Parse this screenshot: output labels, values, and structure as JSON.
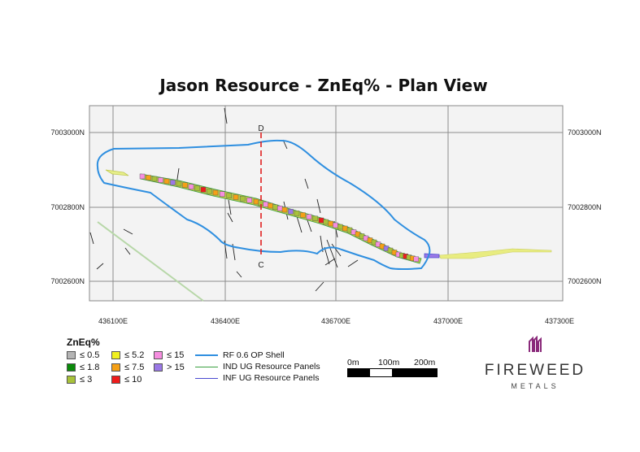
{
  "title": "Jason Resource - ZnEq% - Plan View",
  "axes": {
    "x_ticks": [
      "436100E",
      "436400E",
      "436700E",
      "437000E",
      "437300E"
    ],
    "y_ticks": [
      "7003000N",
      "7002800N",
      "7002600N"
    ]
  },
  "section_labels": {
    "north": "D",
    "south": "C"
  },
  "legend": {
    "title": "ZnEq%",
    "items": [
      {
        "label": "≤ 0.5",
        "color": "#b4b4b4"
      },
      {
        "label": "≤ 1.8",
        "color": "#0a8a0a"
      },
      {
        "label": "≤ 3",
        "color": "#a8c23a"
      },
      {
        "label": "≤ 5.2",
        "color": "#f0f020"
      },
      {
        "label": "≤ 7.5",
        "color": "#f5a016"
      },
      {
        "label": "≤ 10",
        "color": "#ee1c1c"
      },
      {
        "label": "≤ 15",
        "color": "#f68ee0"
      },
      {
        "label": "> 15",
        "color": "#9a78e6"
      }
    ]
  },
  "lines_legend": [
    {
      "label": "RF 0.6 OP Shell",
      "color": "#2f8fe0"
    },
    {
      "label": "IND UG Resource Panels",
      "color": "#3aa040"
    },
    {
      "label": "INF UG Resource Panels",
      "color": "#4a4ad0"
    }
  ],
  "scale_bar": {
    "labels": [
      "0m",
      "100m",
      "200m"
    ]
  },
  "logo": {
    "line1": "FIREWEED",
    "line2": "METALS",
    "icon": "fireweed-logo-icon",
    "color": "#8a2a7a"
  }
}
